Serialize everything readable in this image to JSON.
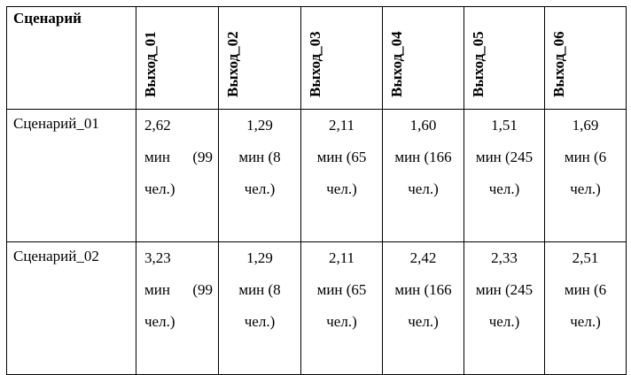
{
  "table": {
    "header": [
      "Сценарий",
      "Выход_01",
      "Выход_02",
      "Выход_03",
      "Выход_04",
      "Выход_05",
      "Выход_06"
    ],
    "rows": [
      [
        "Сценарий_01",
        "2,62\nмин (99 чел.)",
        "1,29\nмин (8 чел.)",
        "2,11\nмин (65 чел.)",
        "1,60\nмин (166 чел.)",
        "1,51\nмин (245 чел.)",
        "1,69\nмин (6 чел.)"
      ],
      [
        "Сценарий_02",
        "3,23\nмин (99 чел.)",
        "1,29\nмин (8 чел.)",
        "2,11\nмин (65 чел.)",
        "2,42\nмин (166 чел.)",
        "2,33\nмин (245 чел.)",
        "2,51\nмин (6 чел.)"
      ]
    ]
  }
}
